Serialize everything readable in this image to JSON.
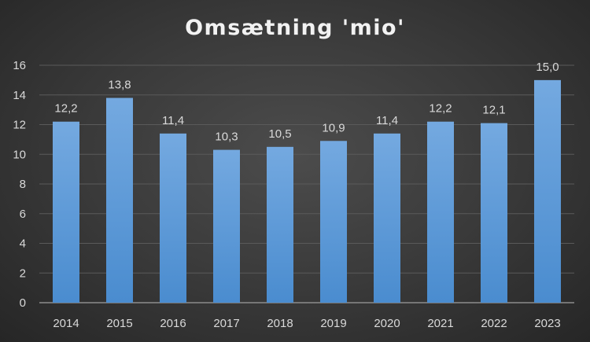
{
  "chart_data": {
    "type": "bar",
    "title": "Omsætning 'mio'",
    "categories": [
      "2014",
      "2015",
      "2016",
      "2017",
      "2018",
      "2019",
      "2020",
      "2021",
      "2022",
      "2023"
    ],
    "values": [
      12.2,
      13.8,
      11.4,
      10.3,
      10.5,
      10.9,
      11.4,
      12.2,
      12.1,
      15.0
    ],
    "data_labels": [
      "12,2",
      "13,8",
      "11,4",
      "10,3",
      "10,5",
      "10,9",
      "11,4",
      "12,2",
      "12,1",
      "15,0"
    ],
    "xlabel": "",
    "ylabel": "",
    "ylim": [
      0,
      16
    ],
    "yticks": [
      0,
      2,
      4,
      6,
      8,
      10,
      12,
      14,
      16
    ],
    "grid": true,
    "legend": "none",
    "colors": {
      "bar_top": "#74a9e0",
      "bar_bottom": "#4a8ccf",
      "grid": "#5a5a5a",
      "axis": "#8c8c8c"
    }
  }
}
